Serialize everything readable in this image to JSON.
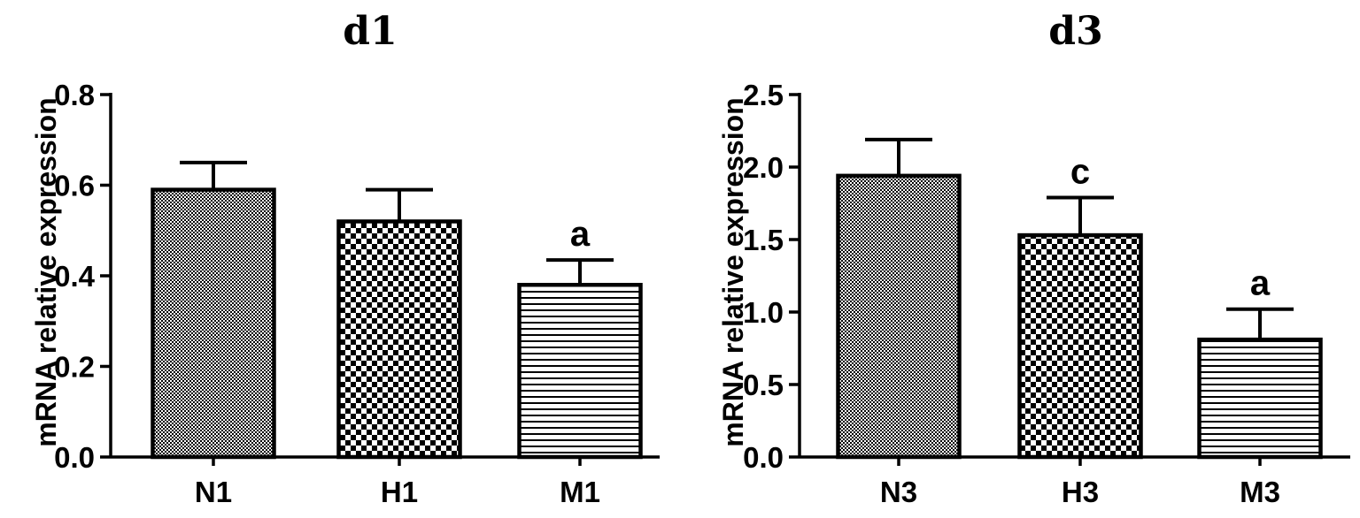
{
  "chart_data": [
    {
      "type": "bar",
      "title": "d1",
      "ylabel": "mRNA relative expression",
      "xlabel": "",
      "ylim": [
        0,
        0.8
      ],
      "yticks": [
        "0.0",
        "0.2",
        "0.4",
        "0.6",
        "0.8"
      ],
      "categories": [
        "N1",
        "H1",
        "M1"
      ],
      "values": [
        0.59,
        0.52,
        0.38
      ],
      "errors": [
        0.06,
        0.07,
        0.055
      ],
      "annotations": [
        "",
        "",
        "a"
      ],
      "patterns": [
        "fine-dots",
        "checker",
        "horizontal-lines"
      ],
      "grid": false
    },
    {
      "type": "bar",
      "title": "d3",
      "ylabel": "mRNA relative expression",
      "xlabel": "",
      "ylim": [
        0,
        2.5
      ],
      "yticks": [
        "0.0",
        "0.5",
        "1.0",
        "1.5",
        "2.0",
        "2.5"
      ],
      "categories": [
        "N3",
        "H3",
        "M3"
      ],
      "values": [
        1.94,
        1.53,
        0.81
      ],
      "errors": [
        0.25,
        0.26,
        0.21
      ],
      "annotations": [
        "",
        "c",
        "a"
      ],
      "patterns": [
        "fine-dots",
        "checker",
        "horizontal-lines"
      ],
      "grid": false
    }
  ]
}
